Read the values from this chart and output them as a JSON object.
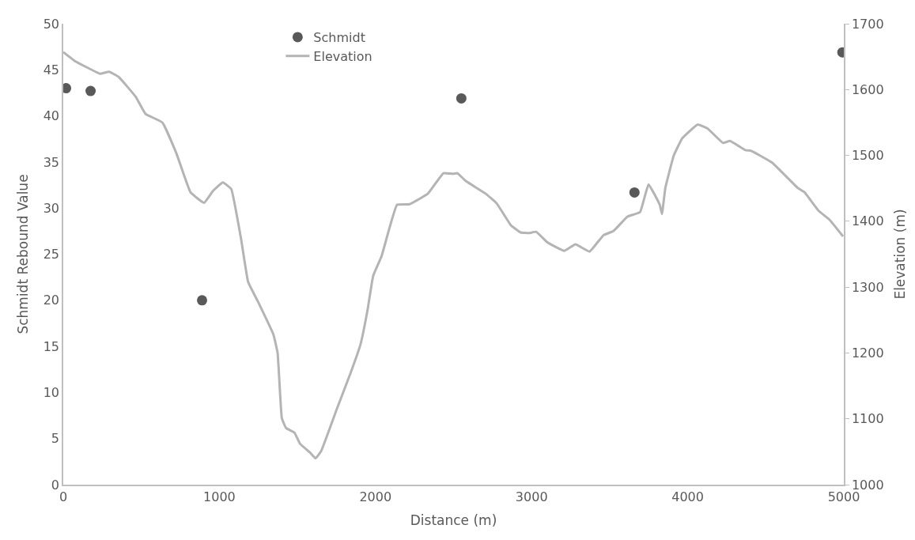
{
  "chart_data": {
    "type": "scatter",
    "xlabel": "Distance (m)",
    "ylabel": "Schmidt Rebound Value",
    "y2label": "Elevation (m)",
    "xlim": [
      0,
      5000
    ],
    "xticks": [
      0,
      1000,
      2000,
      3000,
      4000,
      5000
    ],
    "ylim": [
      0,
      50
    ],
    "yticks": [
      0,
      5,
      10,
      15,
      20,
      25,
      30,
      35,
      40,
      45,
      50
    ],
    "y2lim": [
      1000,
      1700
    ],
    "y2ticks": [
      1000,
      1100,
      1200,
      1300,
      1400,
      1500,
      1600,
      1700
    ],
    "grid": false,
    "legend": "top",
    "marker": "circle",
    "series": [
      {
        "name": "Schmidt",
        "color": "#595959",
        "x": [
          18,
          175,
          889,
          2550,
          3659,
          4991
        ],
        "values": [
          43.0,
          42.7,
          20.0,
          41.9,
          31.7,
          46.9
        ]
      },
      {
        "name": "Elevation",
        "type": "line",
        "axis": "y2",
        "color": "#b4b4b4",
        "marker": "none",
        "line_style": "solid",
        "x": [
          0,
          77,
          149,
          236,
          293,
          356,
          464,
          527,
          635,
          725,
          815,
          902,
          959,
          1022,
          1076,
          1139,
          1184,
          1247,
          1346,
          1373,
          1400,
          1427,
          1481,
          1517,
          1580,
          1616,
          1652,
          1751,
          1841,
          1904,
          1949,
          1985,
          2039,
          2138,
          2219,
          2336,
          2435,
          2498,
          2525,
          2579,
          2705,
          2777,
          2867,
          2930,
          2984,
          3029,
          3101,
          3209,
          3281,
          3371,
          3461,
          3524,
          3614,
          3695,
          3749,
          3821,
          3835,
          3857,
          3911,
          3965,
          4064,
          4127,
          4226,
          4271,
          4370,
          4406,
          4541,
          4703,
          4748,
          4838,
          4910,
          4995
        ],
        "values": [
          1657,
          1643,
          1634,
          1624,
          1627,
          1619,
          1589,
          1563,
          1550,
          1503,
          1444,
          1428,
          1446,
          1459,
          1449,
          1373,
          1308,
          1278,
          1228,
          1200,
          1101,
          1086,
          1079,
          1062,
          1049,
          1040,
          1051,
          1114,
          1170,
          1213,
          1265,
          1317,
          1347,
          1425,
          1426,
          1442,
          1473,
          1472,
          1473,
          1461,
          1442,
          1427,
          1394,
          1383,
          1382,
          1384,
          1368,
          1355,
          1365,
          1354,
          1379,
          1385,
          1407,
          1414,
          1456,
          1425,
          1411,
          1451,
          1500,
          1526,
          1547,
          1541,
          1519,
          1522,
          1508,
          1507,
          1489,
          1451,
          1444,
          1416,
          1402,
          1377
        ]
      }
    ]
  }
}
